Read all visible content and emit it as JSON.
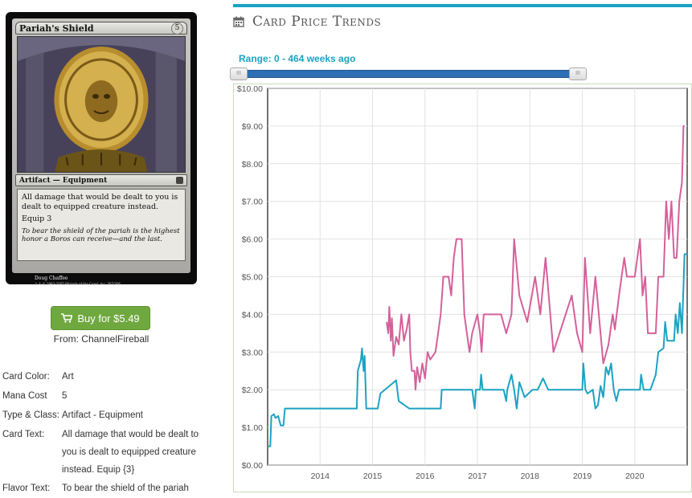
{
  "card": {
    "name": "Pariah's Shield",
    "mana_cost": "5",
    "type_line": "Artifact — Equipment",
    "rules_text": "All damage that would be dealt to you is dealt to equipped creature instead.",
    "equip": "Equip 3",
    "flavor": "To bear the shield of the pariah is the highest honor a Boros can receive—and the last.",
    "artist": "Doug Chaffee",
    "copyright": "™ & © 1993-2005 Wizards of the Coast, Inc. 267/306"
  },
  "buy": {
    "button_label": "Buy for $5.49",
    "from": "From: ChannelFireball",
    "color": "#6fa83f"
  },
  "properties": [
    {
      "label": "Card Color:",
      "value": "Art"
    },
    {
      "label": "Mana Cost",
      "value": "5"
    },
    {
      "label": "Type & Class:",
      "value": "Artifact - Equipment"
    },
    {
      "label": "Card Text:",
      "value": "All damage that would be dealt to you is dealt to equipped creature instead. Equip {3}"
    },
    {
      "label": "Flavor Text:",
      "value": "To bear the shield of the pariah"
    }
  ],
  "trends": {
    "title": "Card Price Trends",
    "range_label": "Range: 0 - 464 weeks ago",
    "accent": "#1ba2c4"
  },
  "chart_data": {
    "type": "line",
    "title": "",
    "xlabel": "",
    "ylabel": "",
    "x_ticks": [
      "2014",
      "2015",
      "2016",
      "2017",
      "2018",
      "2019",
      "2020"
    ],
    "y_ticks": [
      "$0.00",
      "$1.00",
      "$2.00",
      "$3.00",
      "$4.00",
      "$5.00",
      "$6.00",
      "$7.00",
      "$8.00",
      "$9.00",
      "$10.00"
    ],
    "xlim": [
      2013.0,
      2021.0
    ],
    "ylim": [
      0,
      10
    ],
    "grid": true,
    "series": [
      {
        "color": "#1ba2c4",
        "points": [
          [
            2013.0,
            0.5
          ],
          [
            2013.05,
            0.5
          ],
          [
            2013.07,
            1.3
          ],
          [
            2013.12,
            1.35
          ],
          [
            2013.15,
            1.25
          ],
          [
            2013.2,
            1.3
          ],
          [
            2013.25,
            1.05
          ],
          [
            2013.3,
            1.05
          ],
          [
            2013.33,
            1.5
          ],
          [
            2014.7,
            1.5
          ],
          [
            2014.72,
            2.5
          ],
          [
            2014.78,
            2.8
          ],
          [
            2014.8,
            3.1
          ],
          [
            2014.83,
            2.5
          ],
          [
            2014.85,
            2.9
          ],
          [
            2014.88,
            1.5
          ],
          [
            2015.1,
            1.5
          ],
          [
            2015.15,
            1.9
          ],
          [
            2015.45,
            2.25
          ],
          [
            2015.5,
            1.7
          ],
          [
            2015.7,
            1.5
          ],
          [
            2016.3,
            1.5
          ],
          [
            2016.32,
            2.0
          ],
          [
            2016.6,
            2.0
          ],
          [
            2016.9,
            2.0
          ],
          [
            2016.95,
            1.5
          ],
          [
            2016.97,
            2.0
          ],
          [
            2017.05,
            2.0
          ],
          [
            2017.07,
            2.4
          ],
          [
            2017.1,
            2.0
          ],
          [
            2017.5,
            2.0
          ],
          [
            2017.55,
            1.7
          ],
          [
            2017.57,
            2.0
          ],
          [
            2017.65,
            2.4
          ],
          [
            2017.7,
            2.0
          ],
          [
            2017.75,
            1.5
          ],
          [
            2017.8,
            2.2
          ],
          [
            2017.85,
            2.0
          ],
          [
            2017.9,
            1.8
          ],
          [
            2018.05,
            2.0
          ],
          [
            2018.15,
            2.0
          ],
          [
            2018.25,
            2.3
          ],
          [
            2018.35,
            2.0
          ],
          [
            2019.0,
            2.0
          ],
          [
            2019.02,
            2.7
          ],
          [
            2019.06,
            2.0
          ],
          [
            2019.1,
            1.9
          ],
          [
            2019.2,
            2.0
          ],
          [
            2019.25,
            1.5
          ],
          [
            2019.3,
            1.6
          ],
          [
            2019.35,
            2.1
          ],
          [
            2019.4,
            1.8
          ],
          [
            2019.45,
            2.6
          ],
          [
            2019.5,
            2.4
          ],
          [
            2019.55,
            2.7
          ],
          [
            2019.6,
            2.0
          ],
          [
            2019.65,
            1.7
          ],
          [
            2019.7,
            2.0
          ],
          [
            2020.1,
            2.0
          ],
          [
            2020.12,
            2.4
          ],
          [
            2020.17,
            2.0
          ],
          [
            2020.3,
            2.0
          ],
          [
            2020.35,
            2.2
          ],
          [
            2020.4,
            2.4
          ],
          [
            2020.45,
            3.0
          ],
          [
            2020.55,
            3.1
          ],
          [
            2020.58,
            3.8
          ],
          [
            2020.62,
            3.3
          ],
          [
            2020.75,
            3.3
          ],
          [
            2020.78,
            4.0
          ],
          [
            2020.82,
            3.5
          ],
          [
            2020.86,
            4.3
          ],
          [
            2020.9,
            3.5
          ],
          [
            2020.95,
            5.6
          ],
          [
            2021.0,
            5.6
          ]
        ]
      },
      {
        "color": "#d4609a",
        "points": [
          [
            2015.27,
            3.8
          ],
          [
            2015.3,
            3.5
          ],
          [
            2015.32,
            4.2
          ],
          [
            2015.35,
            3.3
          ],
          [
            2015.37,
            3.9
          ],
          [
            2015.4,
            2.9
          ],
          [
            2015.45,
            3.4
          ],
          [
            2015.5,
            3.2
          ],
          [
            2015.55,
            4.0
          ],
          [
            2015.6,
            3.3
          ],
          [
            2015.65,
            3.6
          ],
          [
            2015.7,
            4.0
          ],
          [
            2015.72,
            3.0
          ],
          [
            2015.75,
            2.5
          ],
          [
            2015.8,
            2.5
          ],
          [
            2015.82,
            2.0
          ],
          [
            2015.85,
            2.6
          ],
          [
            2015.9,
            2.2
          ],
          [
            2015.95,
            2.7
          ],
          [
            2016.0,
            2.3
          ],
          [
            2016.05,
            3.0
          ],
          [
            2016.1,
            2.8
          ],
          [
            2016.2,
            3.0
          ],
          [
            2016.25,
            3.5
          ],
          [
            2016.3,
            4.0
          ],
          [
            2016.35,
            5.0
          ],
          [
            2016.45,
            5.0
          ],
          [
            2016.5,
            4.5
          ],
          [
            2016.55,
            5.5
          ],
          [
            2016.6,
            6.0
          ],
          [
            2016.7,
            6.0
          ],
          [
            2016.75,
            4.0
          ],
          [
            2016.8,
            3.5
          ],
          [
            2016.85,
            3.0
          ],
          [
            2016.9,
            3.5
          ],
          [
            2017.0,
            4.0
          ],
          [
            2017.05,
            3.5
          ],
          [
            2017.08,
            3.0
          ],
          [
            2017.12,
            4.0
          ],
          [
            2017.45,
            4.0
          ],
          [
            2017.55,
            3.5
          ],
          [
            2017.65,
            4.0
          ],
          [
            2017.7,
            6.0
          ],
          [
            2017.8,
            4.5
          ],
          [
            2017.95,
            3.8
          ],
          [
            2018.1,
            5.0
          ],
          [
            2018.2,
            4.0
          ],
          [
            2018.3,
            5.5
          ],
          [
            2018.45,
            3.0
          ],
          [
            2018.8,
            4.5
          ],
          [
            2018.9,
            3.5
          ],
          [
            2019.0,
            3.0
          ],
          [
            2019.05,
            5.5
          ],
          [
            2019.15,
            3.5
          ],
          [
            2019.25,
            5.0
          ],
          [
            2019.4,
            2.7
          ],
          [
            2019.5,
            3.2
          ],
          [
            2019.58,
            4.0
          ],
          [
            2019.62,
            3.6
          ],
          [
            2019.7,
            4.5
          ],
          [
            2019.75,
            5.0
          ],
          [
            2019.8,
            5.5
          ],
          [
            2019.85,
            5.0
          ],
          [
            2020.0,
            5.0
          ],
          [
            2020.05,
            5.5
          ],
          [
            2020.1,
            6.0
          ],
          [
            2020.15,
            4.5
          ],
          [
            2020.2,
            5.0
          ],
          [
            2020.25,
            3.5
          ],
          [
            2020.4,
            3.5
          ],
          [
            2020.45,
            5.0
          ],
          [
            2020.55,
            5.0
          ],
          [
            2020.6,
            7.0
          ],
          [
            2020.65,
            6.0
          ],
          [
            2020.7,
            7.0
          ],
          [
            2020.75,
            5.5
          ],
          [
            2020.8,
            5.5
          ],
          [
            2020.85,
            7.0
          ],
          [
            2020.9,
            7.5
          ],
          [
            2020.93,
            9.0
          ],
          [
            2020.95,
            9.0
          ]
        ]
      }
    ]
  }
}
